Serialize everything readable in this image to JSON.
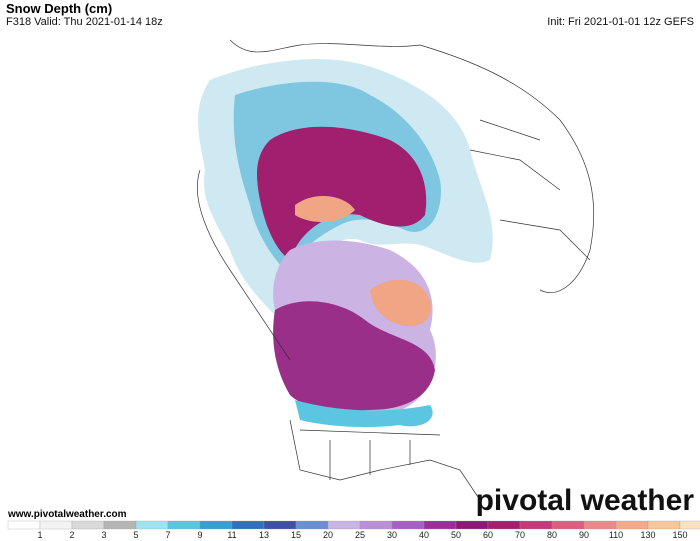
{
  "header": {
    "title": "Snow Depth (cm)",
    "valid": "F318 Valid: Thu 2021-01-14 18z",
    "init": "Init: Fri 2021-01-01 12z GEFS"
  },
  "footer": {
    "url": "www.pivotalweather.com",
    "logo": "pivotal weather"
  },
  "legend": {
    "ticks": [
      1,
      2,
      3,
      5,
      7,
      9,
      11,
      13,
      15,
      20,
      25,
      30,
      40,
      50,
      60,
      70,
      80,
      90,
      110,
      130,
      150
    ],
    "colors": [
      "#ffffff",
      "#f2f2f2",
      "#d9d9d9",
      "#b5b5b5",
      "#9ee3ef",
      "#5cc6e0",
      "#3a9fd0",
      "#2f72b8",
      "#3f4fa3",
      "#6b8fd0",
      "#c9b4e3",
      "#b98fd6",
      "#a65fc4",
      "#9a2f9c",
      "#8a1a78",
      "#a3206e",
      "#c33a7a",
      "#d9607f",
      "#e98a8a",
      "#f2aa8a",
      "#f7c79c",
      "#fbe0c2"
    ]
  }
}
